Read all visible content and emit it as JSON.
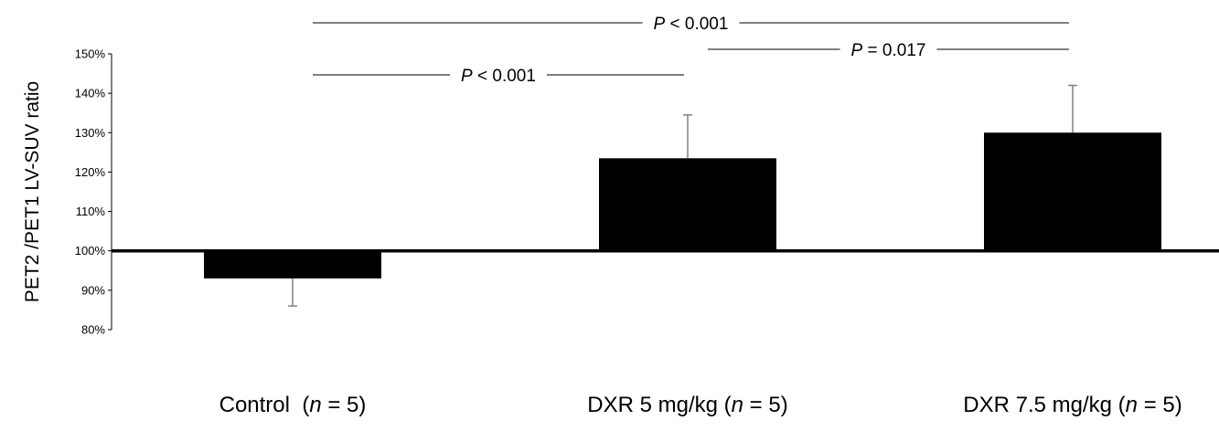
{
  "chart_data": {
    "type": "bar",
    "title": "",
    "xlabel": "",
    "ylabel": "PET2 /PET1 LV-SUV ratio",
    "ylim": [
      80,
      150
    ],
    "y_ticks": [
      80,
      90,
      100,
      110,
      120,
      130,
      140,
      150
    ],
    "y_tick_labels": [
      "80%",
      "90%",
      "100%",
      "110%",
      "120%",
      "130%",
      "140%",
      "150%"
    ],
    "baseline": 100,
    "grid": false,
    "legend": "none",
    "categories": [
      {
        "name": "Control",
        "n_prefix": "(",
        "n_var": "n",
        "n_suffix": " = 5)"
      },
      {
        "name": "DXR 5 mg/kg",
        "n_prefix": "(",
        "n_var": "n",
        "n_suffix": " = 5)"
      },
      {
        "name": "DXR 7.5 mg/kg",
        "n_prefix": "(",
        "n_var": "n",
        "n_suffix": " = 5)"
      }
    ],
    "values": [
      93,
      123.5,
      130
    ],
    "error": [
      7,
      11,
      12
    ],
    "bar_color": "#000000",
    "error_color": "#808080",
    "significance": [
      {
        "between": [
          0,
          2
        ],
        "p_symbol": "P",
        "p_text": " < 0.001"
      },
      {
        "between": [
          1,
          2
        ],
        "p_symbol": "P",
        "p_text": " = 0.017"
      },
      {
        "between": [
          0,
          1
        ],
        "p_symbol": "P",
        "p_text": " < 0.001"
      }
    ]
  }
}
